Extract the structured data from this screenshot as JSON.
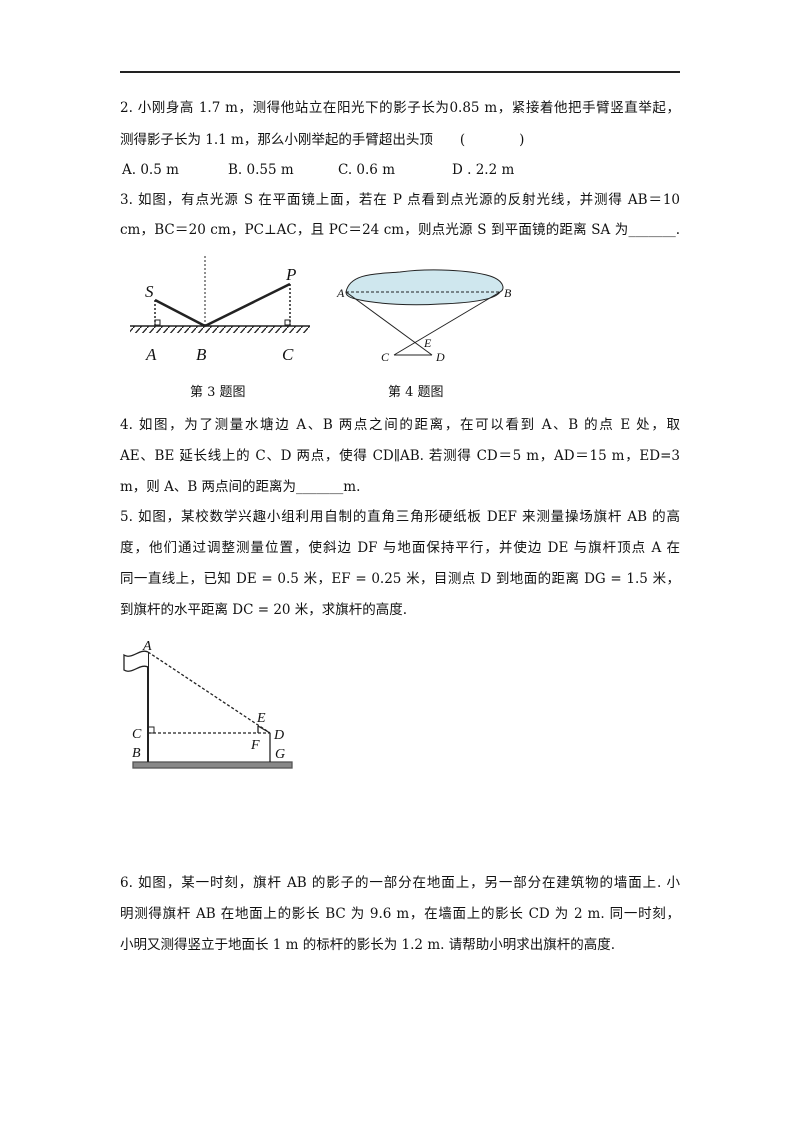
{
  "questions": [
    {
      "lines": [
        "2. 小刚身高 1.7 m，测得他站立在阳光下的影子长为0.85 m，紧接着他把手臂竖直举起，",
        "测得影子长为 1.1 m，那么小刚举起的手臂超出头顶　　(　　　　)"
      ],
      "options": [
        "A. 0.5 m",
        "B. 0.55 m",
        "C. 0.6 m",
        "D . 2.2 m"
      ]
    },
    {
      "lines": [
        "3. 如图，有点光源 S 在平面镜上面，若在 P 点看到点光源的反射光线，并测得 AB＝10",
        "cm，BC＝20 cm，PC⊥AC，且 PC＝24 cm，则点光源 S 到平面镜的距离 SA 为_______."
      ]
    },
    {
      "lines": [
        "4. 如图，为了测量水塘边 A、B 两点之间的距离，在可以看到 A、B 的点 E 处，取",
        "AE、BE 延长线上的 C、D 两点，使得 CD∥AB. 若测得 CD＝5 m，AD＝15 m，ED=3",
        "m，则 A、B 两点间的距离为_______m."
      ]
    },
    {
      "lines": [
        "5. 如图，某校数学兴趣小组利用自制的直角三角形硬纸板 DEF 来测量操场旗杆 AB 的高",
        "度，他们通过调整测量位置，使斜边 DF 与地面保持平行，并使边 DE 与旗杆顶点 A 在",
        "同一直线上，已知 DE = 0.5 米，EF = 0.25 米，目测点 D 到地面的距离 DG = 1.5 米，",
        "到旗杆的水平距离 DC = 20 米，求旗杆的高度."
      ]
    },
    {
      "lines": [
        "6. 如图，某一时刻，旗杆 AB 的影子的一部分在地面上，另一部分在建筑物的墙面上. 小",
        "明测得旗杆 AB 在地面上的影长 BC 为 9.6 m，在墙面上的影长 CD 为 2 m. 同一时刻，",
        "小明又测得竖立于地面长 1 m 的标杆的影长为 1.2 m. 请帮助小明求出旗杆的高度."
      ]
    }
  ],
  "figures": {
    "fig3": {
      "caption": "第 3 题图",
      "labels": [
        "S",
        "P",
        "A",
        "B",
        "C"
      ]
    },
    "fig4": {
      "caption": "第 4 题图",
      "labels": [
        "A",
        "B",
        "E",
        "C",
        "D"
      ]
    },
    "fig5": {
      "labels": [
        "A",
        "E",
        "C",
        "D",
        "F",
        "B",
        "G"
      ]
    }
  }
}
